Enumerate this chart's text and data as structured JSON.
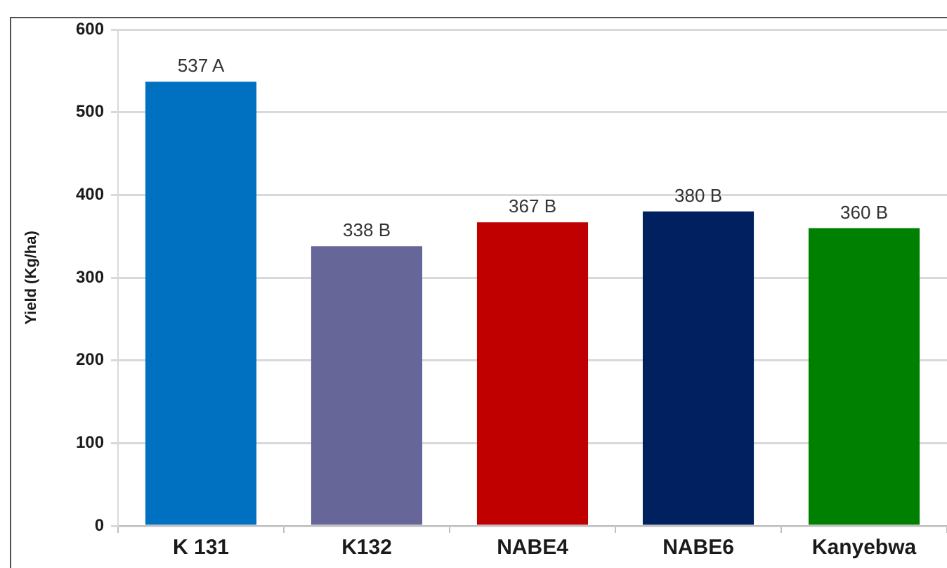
{
  "chart_data": {
    "type": "bar",
    "ylabel": "Yield (Kg/ha)",
    "categories": [
      "K 131",
      "K132",
      "NABE4",
      "NABE6",
      "Kanyebwa"
    ],
    "values": [
      537,
      338,
      367,
      380,
      360
    ],
    "colors": [
      "#0070c0",
      "#666699",
      "#c00000",
      "#002060",
      "#008000"
    ],
    "value_labels": [
      "537 A",
      "338 B",
      "367 B",
      "380 B",
      "360 B"
    ],
    "ylim": [
      0,
      600
    ],
    "yticks": [
      0,
      100,
      200,
      300,
      400,
      500,
      600
    ],
    "grid": "y"
  }
}
